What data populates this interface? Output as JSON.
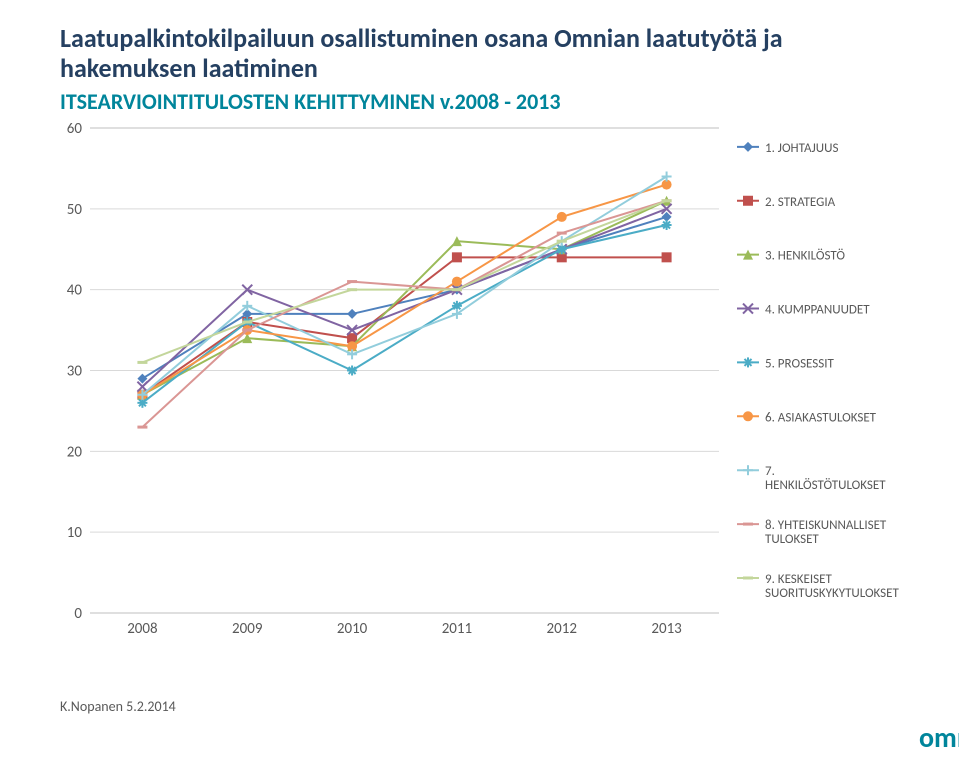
{
  "title": "Laatupalkintokilpailuun osallistuminen osana Omnian laatutyötä ja hakemuksen laatiminen",
  "subtitle": "ITSEARVIOINTITULOSTEN KEHITTYMINEN v.2008 - 2013",
  "footer": "K.Nopanen 5.2.2014",
  "logo_text": "omnia",
  "chart": {
    "type": "line",
    "xlabels": [
      "2008",
      "2009",
      "2010",
      "2011",
      "2012",
      "2013"
    ],
    "ylim": [
      0,
      60
    ],
    "ytick_step": 10,
    "background_color": "#ffffff",
    "grid_color": "#d9d9d9",
    "edge_color": "#bfbfbf",
    "tick_label_color": "#595959",
    "tick_label_fontsize": 15,
    "legend_fontsize": 13,
    "line_width": 2,
    "marker_size": 5,
    "series": [
      {
        "label": "1. JOHTAJUUS",
        "color": "#4f81bd",
        "marker": "diamond",
        "values": [
          29,
          37,
          37,
          40,
          45,
          49
        ]
      },
      {
        "label": "2. STRATEGIA",
        "color": "#c0504d",
        "marker": "square",
        "values": [
          27,
          36,
          34,
          44,
          44,
          44
        ]
      },
      {
        "label": "3. HENKILÖSTÖ",
        "color": "#9bbb59",
        "marker": "triangle",
        "values": [
          27,
          34,
          33,
          46,
          45,
          51
        ]
      },
      {
        "label": "4. KUMPPANUUDET",
        "color": "#8064a2",
        "marker": "x",
        "values": [
          28,
          40,
          35,
          40,
          45,
          50
        ]
      },
      {
        "label": "5. PROSESSIT",
        "color": "#4bacc6",
        "marker": "asterisk",
        "values": [
          26,
          36,
          30,
          38,
          45,
          48
        ]
      },
      {
        "label": "6. ASIAKASTULOKSET",
        "color": "#f79646",
        "marker": "circle",
        "values": [
          27,
          35,
          33,
          41,
          49,
          53
        ]
      },
      {
        "label": "7. HENKILÖSTÖTULOKSET",
        "color": "#92cddc",
        "marker": "plus",
        "values": [
          27,
          38,
          32,
          37,
          46,
          54
        ]
      },
      {
        "label": "8. YHTEISKUNNALLISET TULOKSET",
        "color": "#da9694",
        "marker": "dash",
        "values": [
          23,
          35,
          41,
          40,
          47,
          51
        ]
      },
      {
        "label": "9. KESKEISET SUORITUSKYKYTULOKSET",
        "color": "#c3d69b",
        "marker": "dash",
        "values": [
          31,
          36,
          40,
          40,
          46,
          51
        ]
      }
    ]
  }
}
